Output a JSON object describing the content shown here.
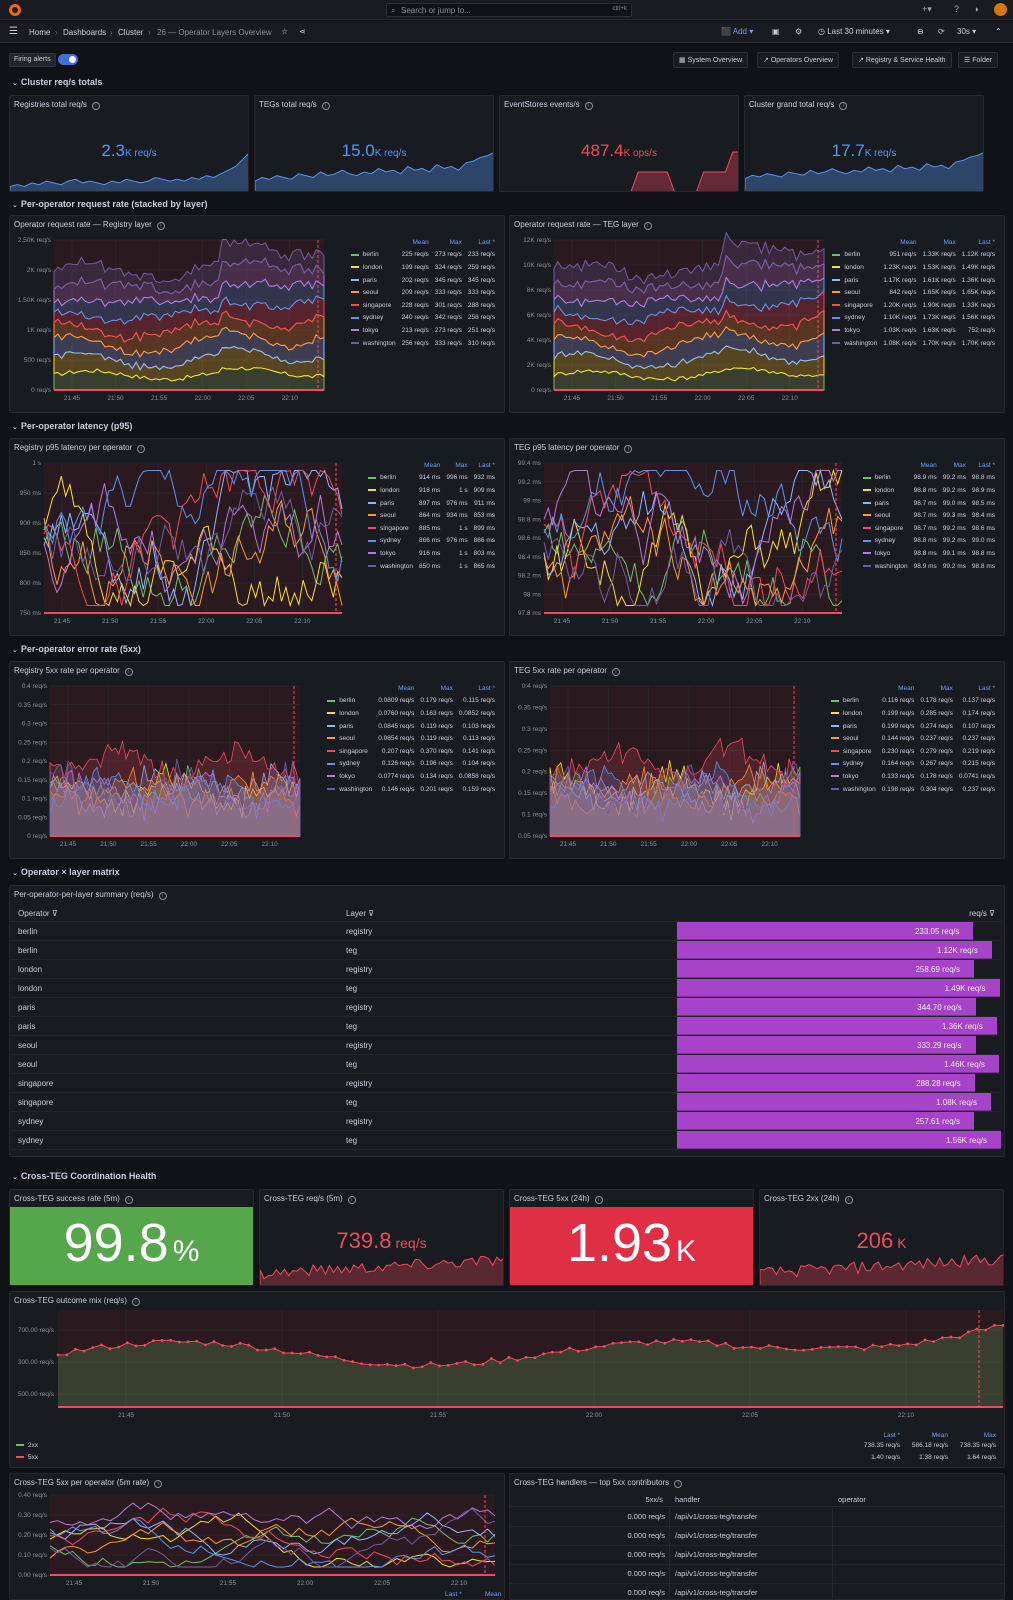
{
  "search": {
    "placeholder": "Search or jump to...",
    "shortcut": "ctrl+k"
  },
  "breadcrumbs": [
    "Home",
    "Dashboards",
    "Cluster",
    "26 — Operator Layers Overview"
  ],
  "toolbar": {
    "add": "Add",
    "time_range": "Last 30 minutes",
    "refresh": "30s"
  },
  "variables": {
    "firing_alerts_label": "Firing alerts",
    "firing_alerts_on": true
  },
  "links": [
    "System Overview",
    "Operators Overview",
    "Registry & Service Health",
    "Folder"
  ],
  "rows": [
    "Cluster req/s totals",
    "Per-operator request rate (stacked by layer)",
    "Per-operator latency (p95)",
    "Per-operator error rate (5xx)",
    "Operator × layer matrix",
    "Cross-TEG Coordination Health"
  ],
  "stats_top": [
    {
      "title": "Registries total req/s",
      "value": "2.3",
      "unit": "K req/s",
      "color": "#5794f2",
      "spark": [
        3,
        4,
        3,
        5,
        4,
        6,
        5,
        4,
        6,
        7,
        5,
        6,
        5,
        4,
        6,
        5,
        7,
        6,
        5,
        6,
        8,
        7,
        6,
        7,
        6,
        8,
        7,
        9,
        8,
        10,
        12,
        14,
        18,
        22
      ]
    },
    {
      "title": "TEGs total req/s",
      "value": "15.0",
      "unit": "K req/s",
      "color": "#5794f2",
      "spark": [
        6,
        8,
        7,
        9,
        8,
        7,
        10,
        9,
        8,
        11,
        9,
        10,
        12,
        10,
        9,
        11,
        10,
        13,
        11,
        12,
        10,
        14,
        12,
        13,
        11,
        15,
        13,
        14,
        12,
        16,
        17,
        19,
        20,
        22
      ]
    },
    {
      "title": "EventStores events/s",
      "value": "487.4",
      "unit": "K ops/s",
      "color": "#f2495c",
      "spark": [
        0,
        0,
        0,
        0,
        0,
        0,
        0,
        0,
        0,
        0,
        0,
        0,
        0,
        0,
        0,
        0,
        0,
        0,
        0,
        18,
        18,
        18,
        18,
        18,
        0,
        0,
        0,
        0,
        18,
        18,
        18,
        18,
        36,
        36
      ]
    },
    {
      "title": "Cluster grand total req/s",
      "value": "17.7",
      "unit": "K req/s",
      "color": "#5794f2",
      "spark": [
        8,
        10,
        9,
        11,
        10,
        9,
        12,
        11,
        10,
        13,
        11,
        12,
        14,
        12,
        11,
        13,
        12,
        15,
        13,
        14,
        12,
        16,
        14,
        15,
        13,
        17,
        15,
        16,
        14,
        18,
        19,
        21,
        22,
        24
      ]
    }
  ],
  "operators": [
    "berlin",
    "london",
    "paris",
    "seoul",
    "singapore",
    "sydney",
    "tokyo",
    "washington"
  ],
  "op_colors": [
    "#73bf69",
    "#fade2a",
    "#8ab8ff",
    "#ff9830",
    "#f2495c",
    "#5794f2",
    "#b877d9",
    "#705da0"
  ],
  "legend_headers": [
    "Mean",
    "Max",
    "Last *"
  ],
  "timeseries": [
    {
      "title": "Operator request rate — Registry layer",
      "yticks": [
        "2.50K req/s",
        "2K req/s",
        "1.50K req/s",
        "1K req/s",
        "500 req/s",
        "0 req/s"
      ],
      "xticks": [
        "21:45",
        "21:50",
        "21:55",
        "22:00",
        "22:05",
        "22:10"
      ],
      "stacked": true,
      "legend": [
        [
          "225 req/s",
          "273 req/s",
          "233 req/s"
        ],
        [
          "199 req/s",
          "324 req/s",
          "259 req/s"
        ],
        [
          "202 req/s",
          "345 req/s",
          "345 req/s"
        ],
        [
          "209 req/s",
          "333 req/s",
          "333 req/s"
        ],
        [
          "228 req/s",
          "301 req/s",
          "288 req/s"
        ],
        [
          "240 req/s",
          "342 req/s",
          "258 req/s"
        ],
        [
          "213 req/s",
          "273 req/s",
          "251 req/s"
        ],
        [
          "256 req/s",
          "333 req/s",
          "310 req/s"
        ]
      ]
    },
    {
      "title": "Operator request rate — TEG layer",
      "yticks": [
        "12K req/s",
        "10K req/s",
        "8K req/s",
        "6K req/s",
        "4K req/s",
        "2K req/s",
        "0 req/s"
      ],
      "xticks": [
        "21:45",
        "21:50",
        "21:55",
        "22:00",
        "22:05",
        "22:10"
      ],
      "stacked": true,
      "legend": [
        [
          "951 req/s",
          "1.33K req/s",
          "1.12K req/s"
        ],
        [
          "1.23K req/s",
          "1.53K req/s",
          "1.49K req/s"
        ],
        [
          "1.17K req/s",
          "1.61K req/s",
          "1.36K req/s"
        ],
        [
          "842 req/s",
          "1.65K req/s",
          "1.65K req/s"
        ],
        [
          "1.20K req/s",
          "1.90K req/s",
          "1.33K req/s"
        ],
        [
          "1.10K req/s",
          "1.73K req/s",
          "1.56K req/s"
        ],
        [
          "1.03K req/s",
          "1.63K req/s",
          "752 req/s"
        ],
        [
          "1.08K req/s",
          "1.70K req/s",
          "1.70K req/s"
        ]
      ]
    },
    {
      "title": "Registry p95 latency per operator",
      "yticks": [
        "1 s",
        "950 ms",
        "900 ms",
        "850 ms",
        "800 ms",
        "750 ms"
      ],
      "xticks": [
        "21:45",
        "21:50",
        "21:55",
        "22:00",
        "22:05",
        "22:10"
      ],
      "stacked": false,
      "legend": [
        [
          "914 ms",
          "996 ms",
          "932 ms"
        ],
        [
          "918 ms",
          "1 s",
          "909 ms"
        ],
        [
          "897 ms",
          "976 ms",
          "911 ms"
        ],
        [
          "864 ms",
          "934 ms",
          "853 ms"
        ],
        [
          "885 ms",
          "1 s",
          "899 ms"
        ],
        [
          "866 ms",
          "976 ms",
          "886 ms"
        ],
        [
          "916 ms",
          "1 s",
          "803 ms"
        ],
        [
          "850 ms",
          "1 s",
          "865 ms"
        ]
      ]
    },
    {
      "title": "TEG p95 latency per operator",
      "yticks": [
        "99.4 ms",
        "99.2 ms",
        "99 ms",
        "98.8 ms",
        "98.6 ms",
        "98.4 ms",
        "98.2 ms",
        "98 ms",
        "97.8 ms"
      ],
      "xticks": [
        "21:45",
        "21:50",
        "21:55",
        "22:00",
        "22:05",
        "22:10"
      ],
      "stacked": false,
      "legend": [
        [
          "98.9 ms",
          "99.2 ms",
          "98.8 ms"
        ],
        [
          "98.8 ms",
          "99.2 ms",
          "98.9 ms"
        ],
        [
          "98.7 ms",
          "99.0 ms",
          "98.5 ms"
        ],
        [
          "98.7 ms",
          "99.3 ms",
          "98.4 ms"
        ],
        [
          "98.7 ms",
          "99.2 ms",
          "98.6 ms"
        ],
        [
          "98.8 ms",
          "99.2 ms",
          "99.0 ms"
        ],
        [
          "98.8 ms",
          "99.1 ms",
          "98.8 ms"
        ],
        [
          "98.9 ms",
          "99.2 ms",
          "98.8 ms"
        ]
      ]
    },
    {
      "title": "Registry 5xx rate per operator",
      "yticks": [
        "0.4 req/s",
        "0.35 req/s",
        "0.3 req/s",
        "0.25 req/s",
        "0.2 req/s",
        "0.15 req/s",
        "0.1 req/s",
        "0.05 req/s",
        "0 req/s"
      ],
      "xticks": [
        "21:45",
        "21:50",
        "21:55",
        "22:00",
        "22:05",
        "22:10"
      ],
      "stacked": false,
      "area": true,
      "legend": [
        [
          "0.0809 req/s",
          "0.179 req/s",
          "0.115 req/s"
        ],
        [
          "0.0760 req/s",
          "0.163 req/s",
          "0.0852 req/s"
        ],
        [
          "0.0845 req/s",
          "0.119 req/s",
          "0.103 req/s"
        ],
        [
          "0.0854 req/s",
          "0.119 req/s",
          "0.113 req/s"
        ],
        [
          "0.207 req/s",
          "0.370 req/s",
          "0.141 req/s"
        ],
        [
          "0.126 req/s",
          "0.196 req/s",
          "0.104 req/s"
        ],
        [
          "0.0774 req/s",
          "0.134 req/s",
          "0.0858 req/s"
        ],
        [
          "0.146 req/s",
          "0.201 req/s",
          "0.159 req/s"
        ]
      ]
    },
    {
      "title": "TEG 5xx rate per operator",
      "yticks": [
        "0.4 req/s",
        "0.35 req/s",
        "0.3 req/s",
        "0.25 req/s",
        "0.2 req/s",
        "0.15 req/s",
        "0.1 req/s",
        "0.05 req/s"
      ],
      "xticks": [
        "21:45",
        "21:50",
        "21:55",
        "22:00",
        "22:05",
        "22:10"
      ],
      "stacked": false,
      "area": true,
      "legend": [
        [
          "0.116 req/s",
          "0.178 req/s",
          "0.137 req/s"
        ],
        [
          "0.199 req/s",
          "0.285 req/s",
          "0.174 req/s"
        ],
        [
          "0.199 req/s",
          "0.274 req/s",
          "0.107 req/s"
        ],
        [
          "0.144 req/s",
          "0.237 req/s",
          "0.237 req/s"
        ],
        [
          "0.230 req/s",
          "0.279 req/s",
          "0.219 req/s"
        ],
        [
          "0.164 req/s",
          "0.267 req/s",
          "0.215 req/s"
        ],
        [
          "0.133 req/s",
          "0.178 req/s",
          "0.0741 req/s"
        ],
        [
          "0.198 req/s",
          "0.304 req/s",
          "0.237 req/s"
        ]
      ]
    }
  ],
  "matrix": {
    "title": "Per-operator-per-layer summary (req/s)",
    "headers": [
      "Operator",
      "Layer",
      "req/s"
    ],
    "rows": [
      [
        "berlin",
        "registry",
        "233.05 req/s",
        233
      ],
      [
        "berlin",
        "teg",
        "1.12K req/s",
        1120
      ],
      [
        "london",
        "registry",
        "258.69 req/s",
        259
      ],
      [
        "london",
        "teg",
        "1.49K req/s",
        1490
      ],
      [
        "paris",
        "registry",
        "344.70 req/s",
        345
      ],
      [
        "paris",
        "teg",
        "1.36K req/s",
        1360
      ],
      [
        "seoul",
        "registry",
        "333.29 req/s",
        333
      ],
      [
        "seoul",
        "teg",
        "1.46K req/s",
        1460
      ],
      [
        "singapore",
        "registry",
        "288.28 req/s",
        288
      ],
      [
        "singapore",
        "teg",
        "1.08K req/s",
        1080
      ],
      [
        "sydney",
        "registry",
        "257.61 req/s",
        258
      ],
      [
        "sydney",
        "teg",
        "1.56K req/s",
        1560
      ]
    ]
  },
  "stats_bottom": [
    {
      "title": "Cross-TEG success rate (5m)",
      "value": "99.8",
      "unit": "%",
      "bg": "#56a64b",
      "fg": "#ffffff",
      "big": true
    },
    {
      "title": "Cross-TEG req/s (5m)",
      "value": "739.8",
      "unit": "req/s",
      "bg": "",
      "fg": "#f2495c",
      "big": false
    },
    {
      "title": "Cross-TEG 5xx (24h)",
      "value": "1.93",
      "unit": "K",
      "bg": "#e02f44",
      "fg": "#ffffff",
      "big": true
    },
    {
      "title": "Cross-TEG 2xx (24h)",
      "value": "206",
      "unit": "K",
      "bg": "",
      "fg": "#f2495c",
      "big": false
    }
  ],
  "outcome": {
    "title": "Cross-TEG outcome mix (req/s)",
    "yticks": [
      "700.00 req/s",
      "300.00 req/s",
      "500.00 req/s"
    ],
    "xticks": [
      "21:45",
      "21:50",
      "21:55",
      "22:00",
      "22:05",
      "22:10"
    ],
    "legend_headers": [
      "Last *",
      "Mean",
      "Max"
    ],
    "legend": [
      {
        "name": "2xx",
        "color": "#73bf69",
        "vals": [
          "738.35 req/s",
          "586.18 req/s",
          "738.35 req/s"
        ]
      },
      {
        "name": "5xx",
        "color": "#f2495c",
        "vals": [
          "1.40 req/s",
          "1.38 req/s",
          "1.64 req/s"
        ]
      }
    ]
  },
  "op5xx": {
    "title": "Cross-TEG 5xx per operator (5m rate)",
    "yticks": [
      "0.40 req/s",
      "0.30 req/s",
      "0.20 req/s",
      "0.10 req/s",
      "0.00 req/s"
    ],
    "xticks": [
      "21:45",
      "21:50",
      "21:55",
      "22:00",
      "22:05",
      "22:10"
    ],
    "legend_headers": [
      "Last *",
      "Mean"
    ]
  },
  "handlers": {
    "title": "Cross-TEG handlers — top 5xx contributors",
    "headers": [
      "5xx/s",
      "handler",
      "operator"
    ],
    "rows": [
      [
        "0.000 req/s",
        "/api/v1/cross-teg/transfer",
        ""
      ],
      [
        "0.000 req/s",
        "/api/v1/cross-teg/transfer",
        ""
      ],
      [
        "0.000 req/s",
        "/api/v1/cross-teg/transfer",
        ""
      ],
      [
        "0.000 req/s",
        "/api/v1/cross-teg/transfer",
        ""
      ],
      [
        "0.000 req/s",
        "/api/v1/cross-teg/transfer",
        ""
      ]
    ]
  }
}
